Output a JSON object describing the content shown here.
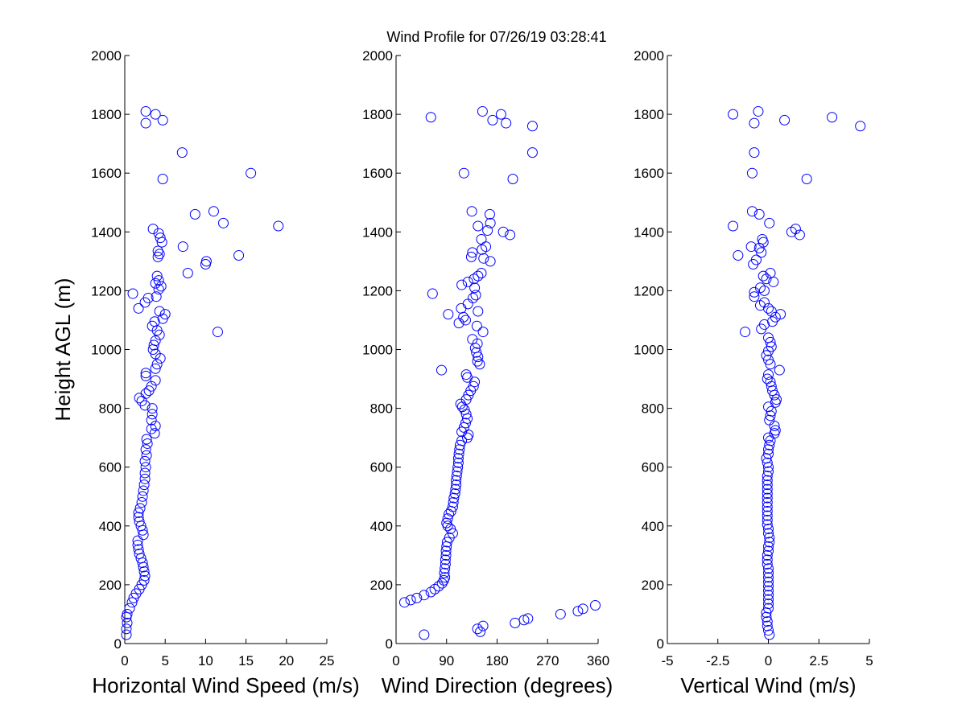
{
  "figure": {
    "title": "Wind Profile for  07/26/19 03:28:41",
    "marker_color": "#0000ff"
  },
  "chart_data": [
    {
      "type": "scatter",
      "name": "horizontal-wind-speed",
      "xlabel": "Horizontal Wind Speed (m/s)",
      "ylabel": "Height AGL (m)",
      "xlim": [
        0,
        25
      ],
      "ylim": [
        0,
        2000
      ],
      "xticks": [
        0,
        5,
        10,
        15,
        20,
        25
      ],
      "xtick_labels": [
        "0",
        "5",
        "10",
        "15",
        "20",
        "25"
      ],
      "yticks": [
        0,
        200,
        400,
        600,
        800,
        1000,
        1200,
        1400,
        1600,
        1800,
        2000
      ],
      "ytick_labels": [
        "0",
        "200",
        "400",
        "600",
        "800",
        "1000",
        "1200",
        "1400",
        "1600",
        "1800",
        "2000"
      ],
      "grid": false,
      "points": [
        [
          0.2,
          30
        ],
        [
          0.2,
          50
        ],
        [
          0.3,
          70
        ],
        [
          0.2,
          90
        ],
        [
          0.3,
          100
        ],
        [
          0.6,
          120
        ],
        [
          0.9,
          140
        ],
        [
          1.1,
          155
        ],
        [
          1.4,
          170
        ],
        [
          1.8,
          185
        ],
        [
          2.1,
          200
        ],
        [
          2.4,
          215
        ],
        [
          2.5,
          230
        ],
        [
          2.4,
          245
        ],
        [
          2.3,
          260
        ],
        [
          2.2,
          275
        ],
        [
          2.0,
          290
        ],
        [
          1.8,
          305
        ],
        [
          1.7,
          320
        ],
        [
          1.6,
          335
        ],
        [
          1.6,
          350
        ],
        [
          2.3,
          370
        ],
        [
          2.2,
          385
        ],
        [
          2.0,
          400
        ],
        [
          1.8,
          415
        ],
        [
          1.7,
          430
        ],
        [
          1.7,
          445
        ],
        [
          1.9,
          460
        ],
        [
          2.1,
          480
        ],
        [
          2.2,
          500
        ],
        [
          2.3,
          520
        ],
        [
          2.4,
          540
        ],
        [
          2.5,
          560
        ],
        [
          2.5,
          580
        ],
        [
          2.6,
          600
        ],
        [
          2.5,
          620
        ],
        [
          2.7,
          640
        ],
        [
          2.6,
          660
        ],
        [
          2.8,
          680
        ],
        [
          2.7,
          695
        ],
        [
          3.7,
          715
        ],
        [
          3.3,
          730
        ],
        [
          3.8,
          740
        ],
        [
          3.3,
          760
        ],
        [
          3.4,
          780
        ],
        [
          3.4,
          800
        ],
        [
          2.5,
          810
        ],
        [
          2.1,
          825
        ],
        [
          1.8,
          835
        ],
        [
          2.6,
          850
        ],
        [
          3.0,
          860
        ],
        [
          3.3,
          875
        ],
        [
          3.8,
          895
        ],
        [
          2.6,
          910
        ],
        [
          2.6,
          920
        ],
        [
          3.8,
          935
        ],
        [
          4.0,
          950
        ],
        [
          4.4,
          970
        ],
        [
          3.8,
          985
        ],
        [
          3.5,
          1000
        ],
        [
          3.6,
          1015
        ],
        [
          3.8,
          1030
        ],
        [
          4.3,
          1050
        ],
        [
          4.0,
          1065
        ],
        [
          3.4,
          1080
        ],
        [
          3.7,
          1095
        ],
        [
          4.7,
          1105
        ],
        [
          5.0,
          1120
        ],
        [
          4.3,
          1130
        ],
        [
          1.7,
          1140
        ],
        [
          2.5,
          1160
        ],
        [
          2.9,
          1175
        ],
        [
          3.9,
          1180
        ],
        [
          1.0,
          1190
        ],
        [
          4.2,
          1205
        ],
        [
          4.5,
          1215
        ],
        [
          3.8,
          1225
        ],
        [
          4.2,
          1235
        ],
        [
          4.0,
          1250
        ],
        [
          7.8,
          1260
        ],
        [
          10.0,
          1290
        ],
        [
          10.1,
          1300
        ],
        [
          4.1,
          1315
        ],
        [
          4.3,
          1325
        ],
        [
          4.1,
          1335
        ],
        [
          7.2,
          1350
        ],
        [
          4.6,
          1365
        ],
        [
          4.4,
          1380
        ],
        [
          4.2,
          1395
        ],
        [
          3.5,
          1410
        ],
        [
          19.0,
          1420
        ],
        [
          12.2,
          1430
        ],
        [
          8.7,
          1460
        ],
        [
          11.0,
          1470
        ],
        [
          4.7,
          1580
        ],
        [
          15.6,
          1600
        ],
        [
          7.1,
          1670
        ],
        [
          2.6,
          1770
        ],
        [
          4.7,
          1780
        ],
        [
          3.8,
          1800
        ],
        [
          2.6,
          1810
        ],
        [
          14.1,
          1320
        ],
        [
          11.5,
          1060
        ]
      ]
    },
    {
      "type": "scatter",
      "name": "wind-direction",
      "xlabel": "Wind Direction (degrees)",
      "ylabel": "",
      "xlim": [
        0,
        360
      ],
      "ylim": [
        0,
        2000
      ],
      "xticks": [
        0,
        90,
        180,
        270,
        360
      ],
      "xtick_labels": [
        "0",
        "90",
        "180",
        "270",
        "360"
      ],
      "yticks": [
        0,
        200,
        400,
        600,
        800,
        1000,
        1200,
        1400,
        1600,
        1800,
        2000
      ],
      "ytick_labels": [
        "0",
        "200",
        "400",
        "600",
        "800",
        "1000",
        "1200",
        "1400",
        "1600",
        "1800",
        "2000"
      ],
      "grid": false,
      "points": [
        [
          50,
          30
        ],
        [
          145,
          50
        ],
        [
          150,
          40
        ],
        [
          155,
          60
        ],
        [
          212,
          70
        ],
        [
          228,
          80
        ],
        [
          235,
          85
        ],
        [
          293,
          100
        ],
        [
          324,
          110
        ],
        [
          333,
          118
        ],
        [
          355,
          130
        ],
        [
          15,
          140
        ],
        [
          26,
          148
        ],
        [
          37,
          155
        ],
        [
          50,
          165
        ],
        [
          62,
          175
        ],
        [
          69,
          185
        ],
        [
          76,
          195
        ],
        [
          82,
          205
        ],
        [
          85,
          215
        ],
        [
          87,
          225
        ],
        [
          86,
          240
        ],
        [
          87,
          255
        ],
        [
          88,
          270
        ],
        [
          88,
          285
        ],
        [
          89,
          300
        ],
        [
          89,
          315
        ],
        [
          90,
          330
        ],
        [
          91,
          345
        ],
        [
          95,
          360
        ],
        [
          101,
          375
        ],
        [
          97,
          390
        ],
        [
          92,
          400
        ],
        [
          90,
          410
        ],
        [
          92,
          425
        ],
        [
          94,
          440
        ],
        [
          98,
          450
        ],
        [
          101,
          465
        ],
        [
          102,
          480
        ],
        [
          103,
          495
        ],
        [
          105,
          510
        ],
        [
          106,
          525
        ],
        [
          107,
          540
        ],
        [
          107,
          555
        ],
        [
          108,
          570
        ],
        [
          109,
          585
        ],
        [
          110,
          600
        ],
        [
          111,
          615
        ],
        [
          111,
          630
        ],
        [
          112,
          645
        ],
        [
          113,
          660
        ],
        [
          114,
          675
        ],
        [
          117,
          690
        ],
        [
          127,
          700
        ],
        [
          129,
          710
        ],
        [
          117,
          720
        ],
        [
          121,
          735
        ],
        [
          124,
          750
        ],
        [
          127,
          765
        ],
        [
          125,
          780
        ],
        [
          122,
          795
        ],
        [
          118,
          805
        ],
        [
          115,
          815
        ],
        [
          125,
          830
        ],
        [
          129,
          845
        ],
        [
          133,
          860
        ],
        [
          138,
          875
        ],
        [
          140,
          890
        ],
        [
          127,
          905
        ],
        [
          125,
          915
        ],
        [
          81,
          930
        ],
        [
          149,
          950
        ],
        [
          145,
          960
        ],
        [
          146,
          975
        ],
        [
          143,
          990
        ],
        [
          141,
          1005
        ],
        [
          145,
          1020
        ],
        [
          136,
          1035
        ],
        [
          155,
          1060
        ],
        [
          144,
          1080
        ],
        [
          112,
          1090
        ],
        [
          124,
          1100
        ],
        [
          120,
          1110
        ],
        [
          93,
          1120
        ],
        [
          146,
          1130
        ],
        [
          116,
          1140
        ],
        [
          128,
          1155
        ],
        [
          137,
          1175
        ],
        [
          142,
          1185
        ],
        [
          65,
          1190
        ],
        [
          140,
          1210
        ],
        [
          117,
          1220
        ],
        [
          128,
          1230
        ],
        [
          139,
          1240
        ],
        [
          146,
          1250
        ],
        [
          152,
          1260
        ],
        [
          168,
          1300
        ],
        [
          156,
          1310
        ],
        [
          134,
          1315
        ],
        [
          136,
          1330
        ],
        [
          153,
          1340
        ],
        [
          160,
          1350
        ],
        [
          152,
          1375
        ],
        [
          191,
          1400
        ],
        [
          203,
          1390
        ],
        [
          163,
          1405
        ],
        [
          146,
          1420
        ],
        [
          168,
          1430
        ],
        [
          167,
          1460
        ],
        [
          135,
          1470
        ],
        [
          208,
          1580
        ],
        [
          121,
          1600
        ],
        [
          243,
          1670
        ],
        [
          243,
          1760
        ],
        [
          196,
          1770
        ],
        [
          172,
          1780
        ],
        [
          187,
          1800
        ],
        [
          62,
          1790
        ],
        [
          154,
          1810
        ]
      ]
    },
    {
      "type": "scatter",
      "name": "vertical-wind",
      "xlabel": "Vertical Wind (m/s)",
      "ylabel": "",
      "xlim": [
        -5,
        5
      ],
      "ylim": [
        0,
        2000
      ],
      "xticks": [
        -5,
        -2.5,
        0,
        2.5,
        5
      ],
      "xtick_labels": [
        "-5",
        "-2.5",
        "0",
        "2.5",
        "5"
      ],
      "yticks": [
        0,
        200,
        400,
        600,
        800,
        1000,
        1200,
        1400,
        1600,
        1800,
        2000
      ],
      "ytick_labels": [
        "0",
        "200",
        "400",
        "600",
        "800",
        "1000",
        "1200",
        "1400",
        "1600",
        "1800",
        "2000"
      ],
      "grid": false,
      "points": [
        [
          0.05,
          30
        ],
        [
          0.0,
          45
        ],
        [
          -0.05,
          60
        ],
        [
          -0.05,
          75
        ],
        [
          -0.1,
          90
        ],
        [
          -0.1,
          105
        ],
        [
          0.0,
          120
        ],
        [
          0.0,
          135
        ],
        [
          0.0,
          150
        ],
        [
          0.0,
          165
        ],
        [
          0.0,
          180
        ],
        [
          0.0,
          195
        ],
        [
          0.0,
          210
        ],
        [
          0.0,
          225
        ],
        [
          0.0,
          240
        ],
        [
          0.0,
          255
        ],
        [
          -0.05,
          270
        ],
        [
          -0.05,
          285
        ],
        [
          -0.05,
          300
        ],
        [
          0.0,
          315
        ],
        [
          0.0,
          330
        ],
        [
          0.05,
          345
        ],
        [
          0.05,
          360
        ],
        [
          0.0,
          375
        ],
        [
          0.0,
          390
        ],
        [
          -0.05,
          405
        ],
        [
          -0.05,
          420
        ],
        [
          -0.05,
          435
        ],
        [
          -0.05,
          450
        ],
        [
          -0.05,
          465
        ],
        [
          -0.05,
          480
        ],
        [
          -0.05,
          495
        ],
        [
          -0.05,
          510
        ],
        [
          -0.05,
          525
        ],
        [
          -0.05,
          540
        ],
        [
          -0.05,
          555
        ],
        [
          -0.05,
          570
        ],
        [
          0.0,
          585
        ],
        [
          0.0,
          600
        ],
        [
          -0.05,
          615
        ],
        [
          -0.1,
          630
        ],
        [
          0.0,
          645
        ],
        [
          0.0,
          660
        ],
        [
          0.05,
          675
        ],
        [
          0.1,
          690
        ],
        [
          0.0,
          700
        ],
        [
          0.3,
          715
        ],
        [
          0.35,
          725
        ],
        [
          0.3,
          740
        ],
        [
          0.05,
          760
        ],
        [
          0.1,
          775
        ],
        [
          0.15,
          790
        ],
        [
          0.0,
          805
        ],
        [
          0.35,
          820
        ],
        [
          0.4,
          830
        ],
        [
          0.3,
          845
        ],
        [
          0.2,
          860
        ],
        [
          0.15,
          875
        ],
        [
          0.1,
          890
        ],
        [
          -0.05,
          900
        ],
        [
          0.0,
          915
        ],
        [
          0.55,
          930
        ],
        [
          0.1,
          950
        ],
        [
          0.0,
          965
        ],
        [
          -0.1,
          980
        ],
        [
          0.0,
          995
        ],
        [
          0.15,
          1010
        ],
        [
          0.1,
          1025
        ],
        [
          0.0,
          1040
        ],
        [
          -1.15,
          1060
        ],
        [
          -0.35,
          1070
        ],
        [
          -0.2,
          1085
        ],
        [
          0.2,
          1095
        ],
        [
          0.35,
          1110
        ],
        [
          0.6,
          1120
        ],
        [
          0.15,
          1130
        ],
        [
          0.0,
          1140
        ],
        [
          -0.4,
          1150
        ],
        [
          -0.2,
          1160
        ],
        [
          -0.7,
          1180
        ],
        [
          -0.7,
          1195
        ],
        [
          -0.2,
          1200
        ],
        [
          -0.4,
          1210
        ],
        [
          0.25,
          1230
        ],
        [
          -0.1,
          1240
        ],
        [
          -0.25,
          1250
        ],
        [
          0.1,
          1260
        ],
        [
          -0.75,
          1290
        ],
        [
          -0.6,
          1305
        ],
        [
          -1.5,
          1320
        ],
        [
          -0.35,
          1330
        ],
        [
          -0.45,
          1345
        ],
        [
          -0.85,
          1350
        ],
        [
          -0.25,
          1365
        ],
        [
          -0.3,
          1375
        ],
        [
          1.15,
          1400
        ],
        [
          1.55,
          1390
        ],
        [
          1.35,
          1410
        ],
        [
          -1.75,
          1420
        ],
        [
          0.05,
          1430
        ],
        [
          -0.45,
          1460
        ],
        [
          -0.8,
          1470
        ],
        [
          1.9,
          1580
        ],
        [
          -0.8,
          1600
        ],
        [
          -0.7,
          1670
        ],
        [
          4.55,
          1760
        ],
        [
          -0.7,
          1770
        ],
        [
          0.8,
          1780
        ],
        [
          3.15,
          1790
        ],
        [
          -1.75,
          1800
        ],
        [
          -0.5,
          1810
        ]
      ]
    }
  ]
}
